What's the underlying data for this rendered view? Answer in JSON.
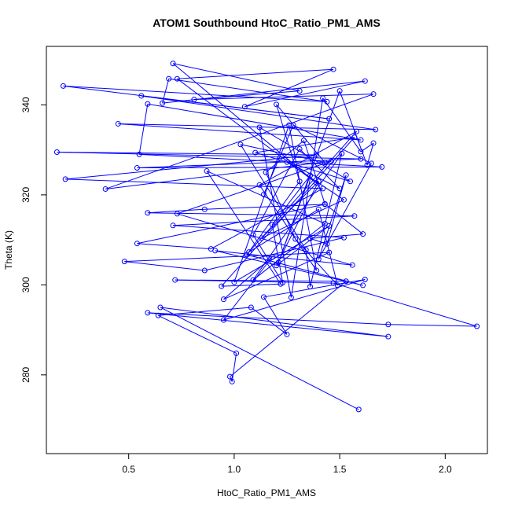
{
  "chart_data": {
    "type": "line",
    "title": "ATOM1 Southbound HtoC_Ratio_PM1_AMS",
    "xlabel": "HtoC_Ratio_PM1_AMS",
    "ylabel": "Theta (K)",
    "xlim": [
      0.11,
      2.2
    ],
    "ylim": [
      262.5,
      353
    ],
    "x_ticks": [
      0.5,
      1.0,
      1.5,
      2.0
    ],
    "x_tick_labels": [
      "0.5",
      "1.0",
      "1.5",
      "2.0"
    ],
    "y_ticks": [
      280,
      300,
      320,
      340
    ],
    "y_tick_labels": [
      "280",
      "300",
      "320",
      "340"
    ],
    "grid": false,
    "legend": "none",
    "style": {
      "color": "#0000ff",
      "marker": "open-circle",
      "lines": true
    },
    "series": [
      {
        "points": [
          [
            1.59,
            272.3
          ],
          [
            0.65,
            295.0
          ],
          [
            1.73,
            288.5
          ],
          [
            0.59,
            293.8
          ],
          [
            1.73,
            291.2
          ],
          [
            2.15,
            290.8
          ],
          [
            1.47,
            300.4
          ],
          [
            0.72,
            301.1
          ],
          [
            1.53,
            300.8
          ],
          [
            0.98,
            279.6
          ],
          [
            0.99,
            278.5
          ],
          [
            1.01,
            284.8
          ],
          [
            0.64,
            293.2
          ],
          [
            1.08,
            295.0
          ],
          [
            1.25,
            289.0
          ],
          [
            1.14,
            297.3
          ],
          [
            1.62,
            301.2
          ],
          [
            0.95,
            292.2
          ],
          [
            1.18,
            306.2
          ],
          [
            0.95,
            296.8
          ],
          [
            1.45,
            307.2
          ],
          [
            0.48,
            305.2
          ],
          [
            0.86,
            303.2
          ],
          [
            1.52,
            310.5
          ],
          [
            0.71,
            313.2
          ],
          [
            1.57,
            315.3
          ],
          [
            0.59,
            316.0
          ],
          [
            0.86,
            316.8
          ],
          [
            1.43,
            317.9
          ],
          [
            0.54,
            309.2
          ],
          [
            0.89,
            308.0
          ],
          [
            1.42,
            321.4
          ],
          [
            0.2,
            323.5
          ],
          [
            1.39,
            328.9
          ],
          [
            0.16,
            329.5
          ],
          [
            1.6,
            328.0
          ],
          [
            0.54,
            326.0
          ],
          [
            1.7,
            326.2
          ],
          [
            0.55,
            329.0
          ],
          [
            0.59,
            340.2
          ],
          [
            1.6,
            332.2
          ],
          [
            0.45,
            335.8
          ],
          [
            1.67,
            334.5
          ],
          [
            0.56,
            342.0
          ],
          [
            1.45,
            336.9
          ],
          [
            0.19,
            344.2
          ],
          [
            1.44,
            340.7
          ],
          [
            0.69,
            345.8
          ],
          [
            0.66,
            340.4
          ],
          [
            1.62,
            345.3
          ],
          [
            1.05,
            339.6
          ],
          [
            1.47,
            347.9
          ],
          [
            0.73,
            345.8
          ],
          [
            1.39,
            322.6
          ],
          [
            0.71,
            349.2
          ],
          [
            1.31,
            343.1
          ],
          [
            0.81,
            341.2
          ],
          [
            1.66,
            342.4
          ],
          [
            0.39,
            321.3
          ],
          [
            1.46,
            327.5
          ],
          [
            0.73,
            315.8
          ],
          [
            1.56,
            304.4
          ],
          [
            0.91,
            307.6
          ],
          [
            1.61,
            299.9
          ],
          [
            1.06,
            306.7
          ],
          [
            1.31,
            323.0
          ],
          [
            1.2,
            340.1
          ],
          [
            1.43,
            327.2
          ],
          [
            1.03,
            331.2
          ],
          [
            1.34,
            307.8
          ],
          [
            1.36,
            299.6
          ],
          [
            1.51,
            329.2
          ],
          [
            1.09,
            301.1
          ],
          [
            1.43,
            313.6
          ],
          [
            0.87,
            325.3
          ],
          [
            1.22,
            300.2
          ],
          [
            0.94,
            299.7
          ],
          [
            1.57,
            332.8
          ],
          [
            1.1,
            329.4
          ],
          [
            1.55,
            323.0
          ],
          [
            1.12,
            335.0
          ],
          [
            1.27,
            297.2
          ],
          [
            1.42,
            341.5
          ],
          [
            1.6,
            329.6
          ],
          [
            1.66,
            331.5
          ],
          [
            1.63,
            326.6
          ],
          [
            1.5,
            343.1
          ],
          [
            1.21,
            305.0
          ],
          [
            1.36,
            324.3
          ],
          [
            1.18,
            313.4
          ],
          [
            1.23,
            300.5
          ],
          [
            1.09,
            311.1
          ],
          [
            1.31,
            330.2
          ],
          [
            1.5,
            321.4
          ],
          [
            1.25,
            327.3
          ],
          [
            1.52,
            318.9
          ],
          [
            1.13,
            310.4
          ],
          [
            1.4,
            323.0
          ],
          [
            1.2,
            304.3
          ],
          [
            1.45,
            313.1
          ],
          [
            1.0,
            300.6
          ],
          [
            1.26,
            335.5
          ],
          [
            1.39,
            303.2
          ],
          [
            1.12,
            322.2
          ],
          [
            1.58,
            334.1
          ],
          [
            1.07,
            307.3
          ],
          [
            1.4,
            316.8
          ],
          [
            1.49,
            299.9
          ],
          [
            1.29,
            310.2
          ],
          [
            1.15,
            325.0
          ],
          [
            1.33,
            332.1
          ],
          [
            1.43,
            318.0
          ],
          [
            1.61,
            311.3
          ],
          [
            1.36,
            310.3
          ],
          [
            1.44,
            309.1
          ],
          [
            1.53,
            324.4
          ],
          [
            1.4,
            305.7
          ],
          [
            1.65,
            327.0
          ],
          [
            1.28,
            335.5
          ],
          [
            1.14,
            320.1
          ]
        ]
      }
    ]
  }
}
